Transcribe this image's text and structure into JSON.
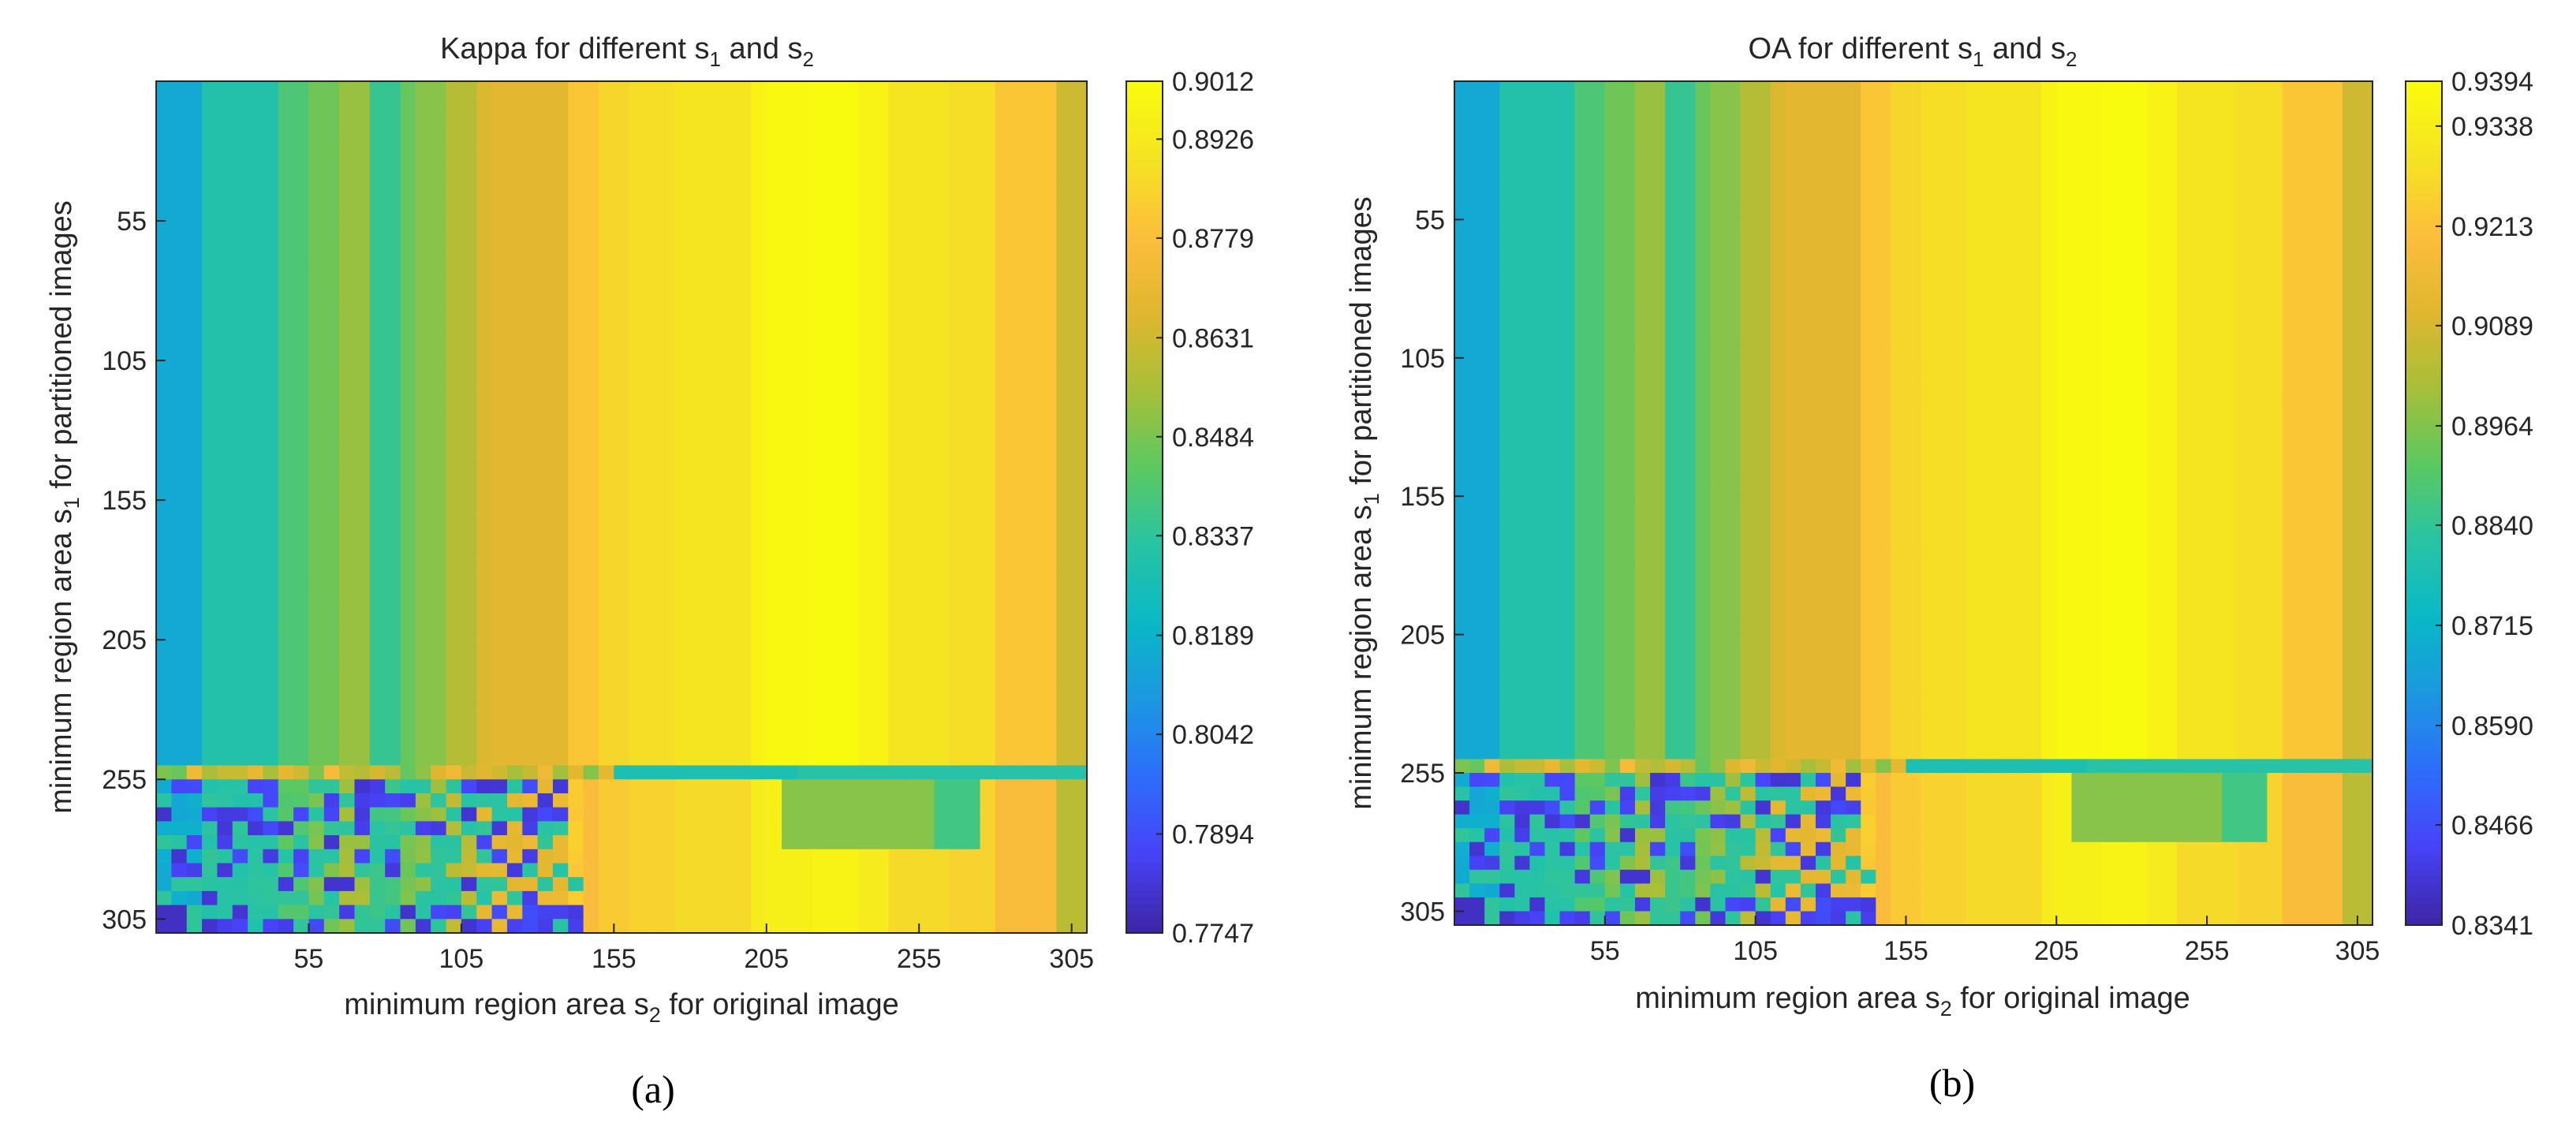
{
  "chart_data": [
    {
      "type": "heatmap",
      "panel_id": "a",
      "caption": "(a)",
      "title_main": "Kappa for different s",
      "title_sub1": "1",
      "title_mid": " and s",
      "title_sub2": "2",
      "xlabel_pre": "minimum region area s",
      "xlabel_sub": "2",
      "xlabel_post": " for original image",
      "ylabel_pre": "minimum region area s",
      "ylabel_sub": "1",
      "ylabel_post": " for partitioned images",
      "x_range": [
        5,
        310
      ],
      "y_range": [
        5,
        310
      ],
      "x_ticks": [
        55,
        105,
        155,
        205,
        255,
        305
      ],
      "y_ticks": [
        55,
        105,
        155,
        205,
        255,
        305
      ],
      "colorbar_range": [
        0.7747,
        0.9012
      ],
      "colorbar_ticks": [
        "0.9012",
        "0.8926",
        "0.8779",
        "0.8631",
        "0.8484",
        "0.8337",
        "0.8189",
        "0.8042",
        "0.7894",
        "0.7747"
      ],
      "colormap": "parula"
    },
    {
      "type": "heatmap",
      "panel_id": "b",
      "caption": "(b)",
      "title_main": "OA for different s",
      "title_sub1": "1",
      "title_mid": " and s",
      "title_sub2": "2",
      "xlabel_pre": "minimum region area s",
      "xlabel_sub": "2",
      "xlabel_post": " for original image",
      "ylabel_pre": "minimum region area s",
      "ylabel_sub": "1",
      "ylabel_post": " for partitioned images",
      "x_range": [
        5,
        310
      ],
      "y_range": [
        5,
        310
      ],
      "x_ticks": [
        55,
        105,
        155,
        205,
        255,
        305
      ],
      "y_ticks": [
        55,
        105,
        155,
        205,
        255,
        305
      ],
      "colorbar_range": [
        0.8341,
        0.9394
      ],
      "colorbar_ticks": [
        "0.9394",
        "0.9338",
        "0.9213",
        "0.9089",
        "0.8964",
        "0.8840",
        "0.8715",
        "0.8590",
        "0.8466",
        "0.8341"
      ],
      "colormap": "parula"
    }
  ],
  "colors": {
    "parula": [
      "#3e26a8",
      "#4743f8",
      "#2d6ef9",
      "#1c98e1",
      "#0ab8c6",
      "#28c3a5",
      "#5bc862",
      "#a6bf3a",
      "#dfb72e",
      "#fcbd3c",
      "#f5e224",
      "#f9fb0e"
    ]
  }
}
